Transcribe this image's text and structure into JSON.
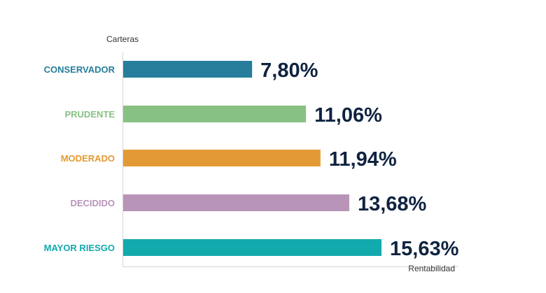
{
  "chart_data": {
    "type": "bar",
    "orientation": "horizontal",
    "title": "",
    "xlabel": "Rentabilidad",
    "ylabel": "Carteras",
    "categories": [
      "CONSERVADOR",
      "PRUDENTE",
      "MODERADO",
      "DECIDIDO",
      "MAYOR RIESGO"
    ],
    "values": [
      7.8,
      11.06,
      11.94,
      13.68,
      15.63
    ],
    "value_labels": [
      "7,80%",
      "11,06%",
      "11,94%",
      "13,68%",
      "15,63%"
    ],
    "colors": [
      "#267e9c",
      "#88c184",
      "#e39a35",
      "#b894b8",
      "#12aaad"
    ],
    "xlim": [
      0,
      20
    ],
    "grid": false,
    "legend": "none"
  }
}
